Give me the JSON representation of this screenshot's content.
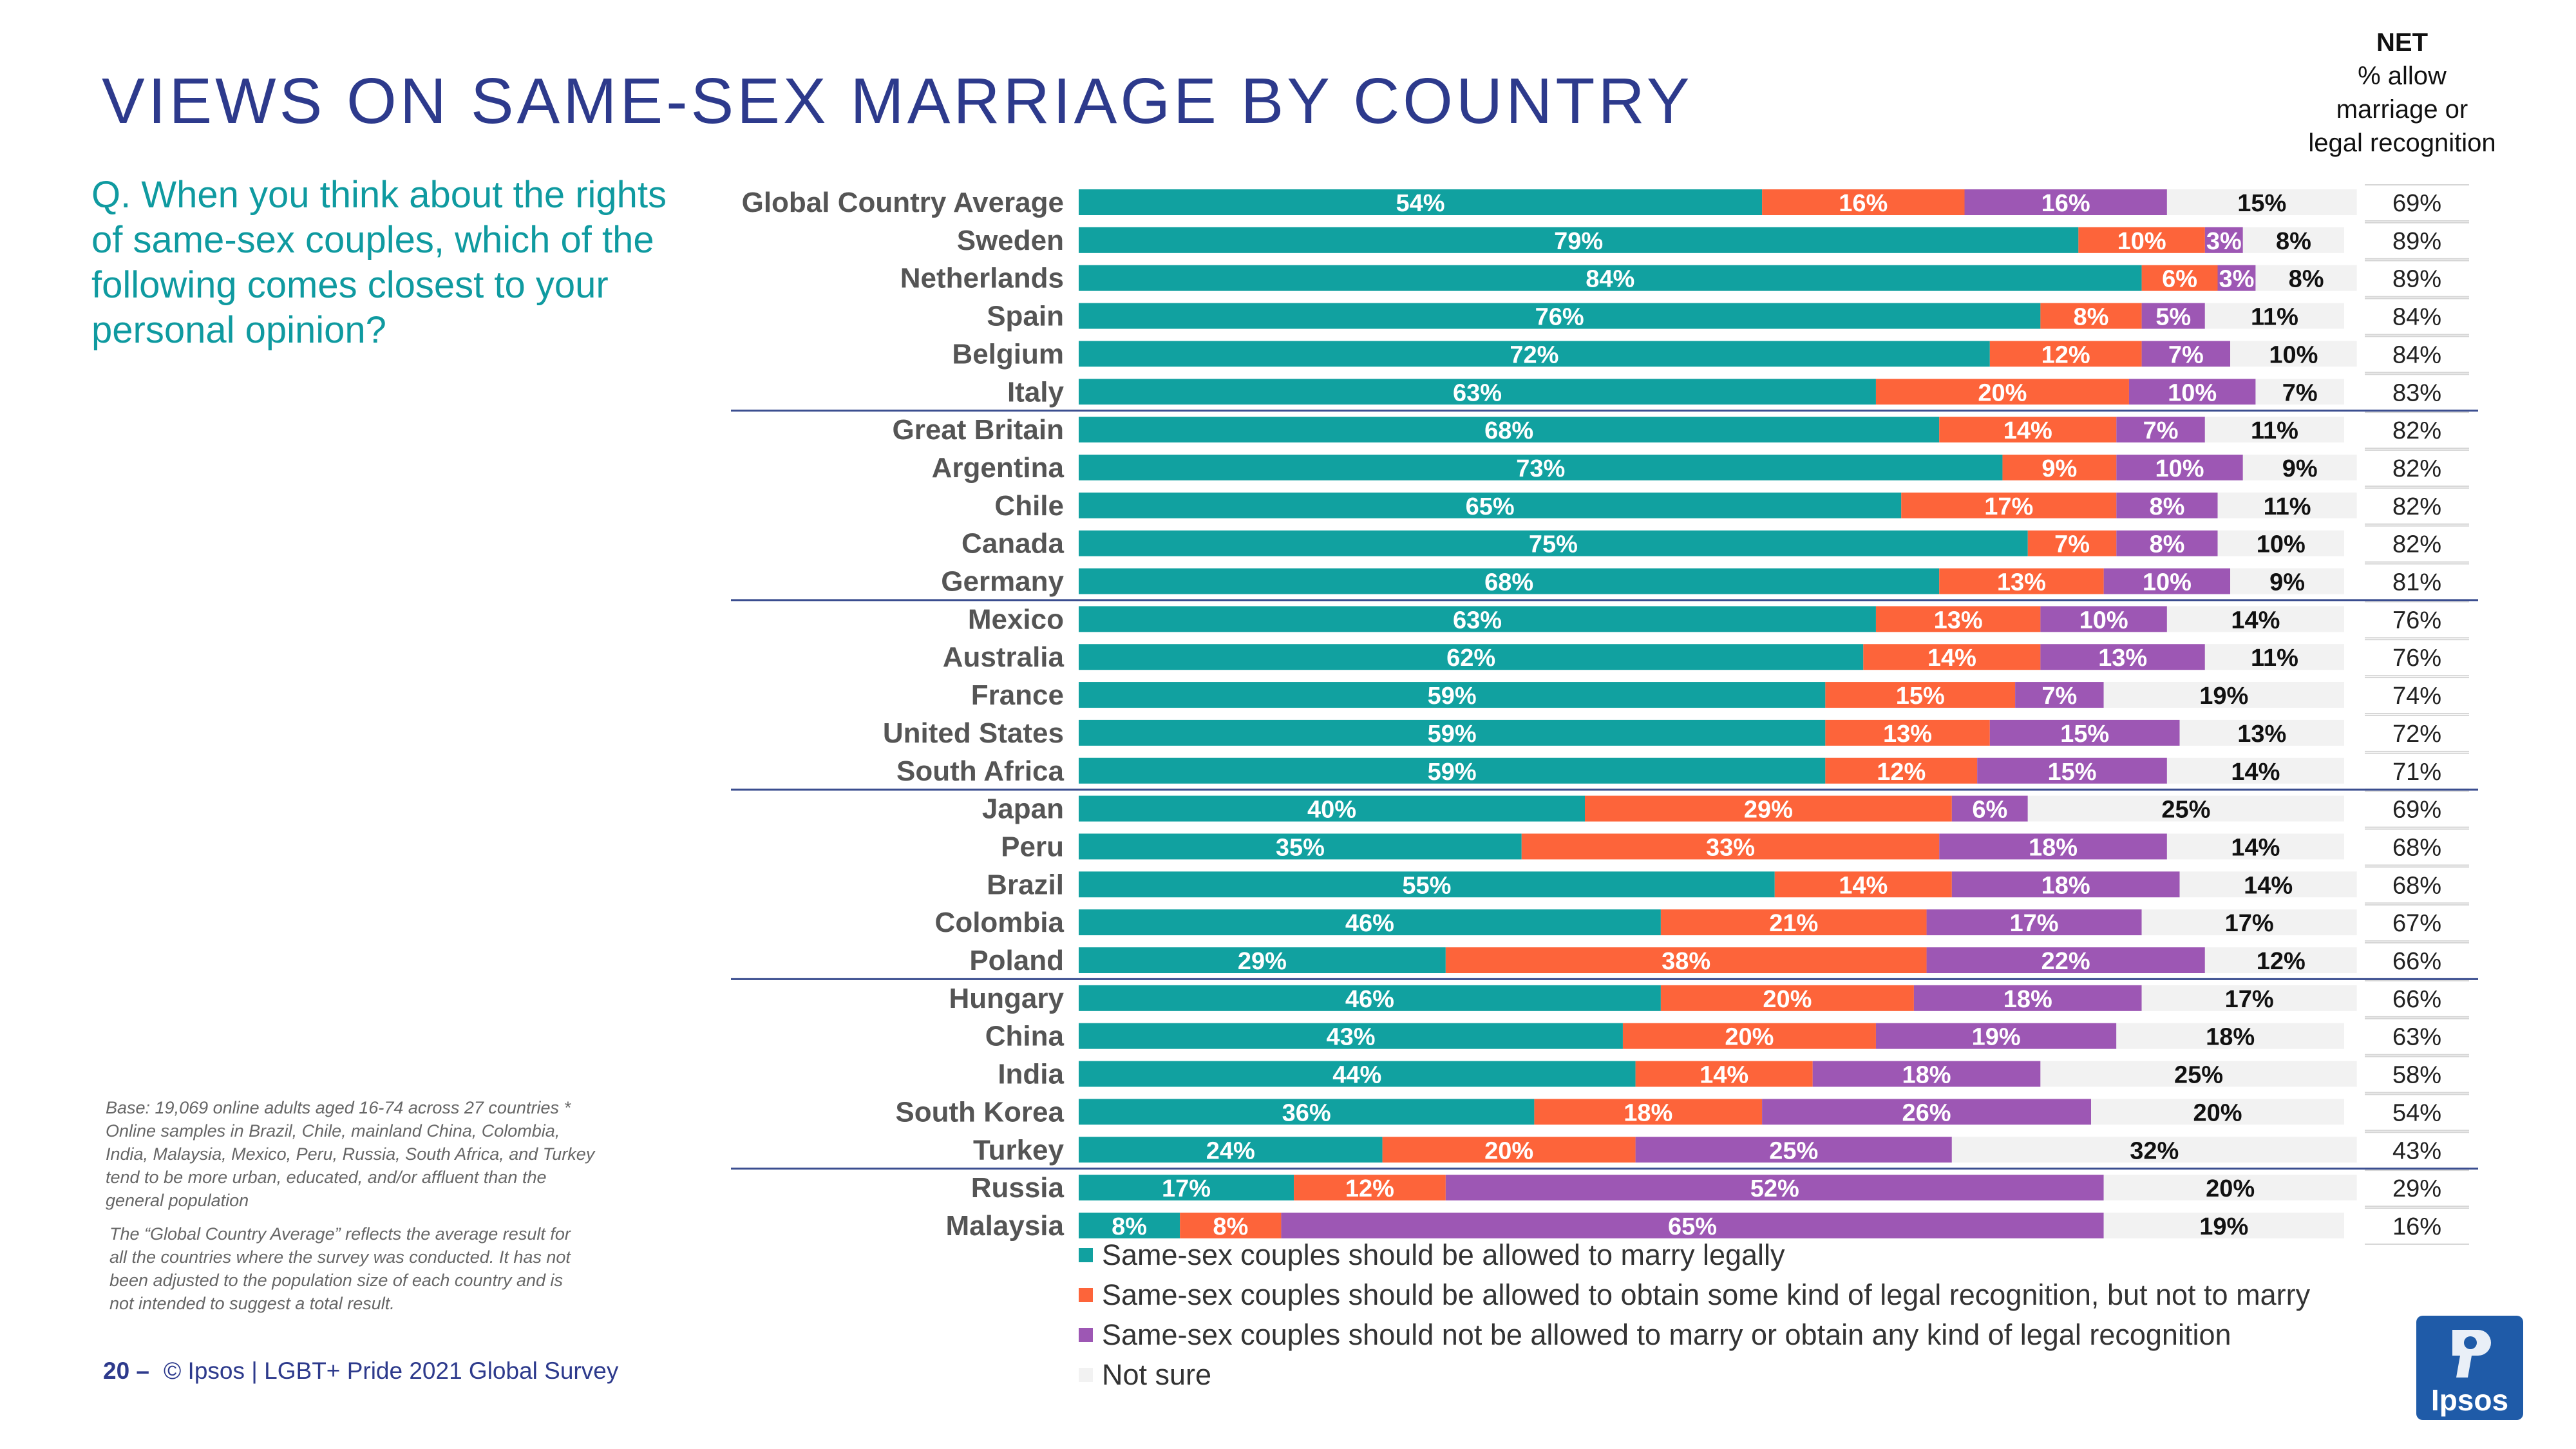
{
  "title": "VIEWS ON SAME-SEX MARRIAGE BY COUNTRY",
  "question": "Q. When you think about the rights of same-sex couples, which of the following comes closest to your personal opinion?",
  "net_header": {
    "label": "NET",
    "sub1": "% allow",
    "sub2": "marriage or",
    "sub3": "legal recognition"
  },
  "base_note": "Base: 19,069 online adults aged 16-74 across 27 countries * Online samples in Brazil, Chile, mainland China, Colombia, India, Malaysia, Mexico, Peru, Russia, South Africa, and Turkey tend to be more urban, educated, and/or affluent than the general population",
  "gca_note": "The “Global Country Average” reflects the average result for all the countries where the survey was conducted. It has not been adjusted to the population size of each country and is not intended to suggest a total result.",
  "footer": {
    "page": "20 –",
    "source": "© Ipsos | LGBT+ Pride 2021 Global Survey"
  },
  "logo_text": "Ipsos",
  "colors": {
    "marry": "#11a1a0",
    "recognition": "#fd643a",
    "not_allowed": "#9d57b4",
    "not_sure": "#f2f2f2",
    "title": "#2d3a8c",
    "question": "#0f9aa0",
    "net_bg": "#d6d6d6",
    "separator": "#3a4d8f",
    "logo": "#1f5ba8"
  },
  "chart_data": {
    "type": "bar",
    "orientation": "horizontal",
    "stacked": true,
    "xlim": [
      0,
      100
    ],
    "value_unit": "%",
    "groups_end_after": [
      5,
      10,
      15,
      20,
      25
    ],
    "categories": [
      "Global Country Average",
      "Sweden",
      "Netherlands",
      "Spain",
      "Belgium",
      "Italy",
      "Great Britain",
      "Argentina",
      "Chile",
      "Canada",
      "Germany",
      "Mexico",
      "Australia",
      "France",
      "United States",
      "South Africa",
      "Japan",
      "Peru",
      "Brazil",
      "Colombia",
      "Poland",
      "Hungary",
      "China",
      "India",
      "South Korea",
      "Turkey",
      "Russia",
      "Malaysia"
    ],
    "series": [
      {
        "name": "Same-sex couples should be allowed to marry legally",
        "values": [
          54,
          79,
          84,
          76,
          72,
          63,
          68,
          73,
          65,
          75,
          68,
          63,
          62,
          59,
          59,
          59,
          40,
          35,
          55,
          46,
          29,
          46,
          43,
          44,
          36,
          24,
          17,
          8
        ]
      },
      {
        "name": "Same-sex couples should be allowed to obtain some kind of legal recognition, but not to marry",
        "values": [
          16,
          10,
          6,
          8,
          12,
          20,
          14,
          9,
          17,
          7,
          13,
          13,
          14,
          15,
          13,
          12,
          29,
          33,
          14,
          21,
          38,
          20,
          20,
          14,
          18,
          20,
          12,
          8
        ]
      },
      {
        "name": "Same-sex couples should not be allowed to marry or obtain any kind of legal recognition",
        "values": [
          16,
          3,
          3,
          5,
          7,
          10,
          7,
          10,
          8,
          8,
          10,
          10,
          13,
          7,
          15,
          15,
          6,
          18,
          18,
          17,
          22,
          18,
          19,
          18,
          26,
          25,
          52,
          65
        ]
      },
      {
        "name": "Not sure",
        "values": [
          15,
          8,
          8,
          11,
          10,
          7,
          11,
          9,
          11,
          10,
          9,
          14,
          11,
          19,
          13,
          14,
          25,
          14,
          14,
          17,
          12,
          17,
          18,
          25,
          20,
          32,
          20,
          19
        ]
      }
    ],
    "net_allow": [
      69,
      89,
      89,
      84,
      84,
      83,
      82,
      82,
      82,
      82,
      81,
      76,
      76,
      74,
      72,
      71,
      69,
      68,
      68,
      67,
      66,
      66,
      63,
      58,
      54,
      43,
      29,
      16
    ]
  }
}
